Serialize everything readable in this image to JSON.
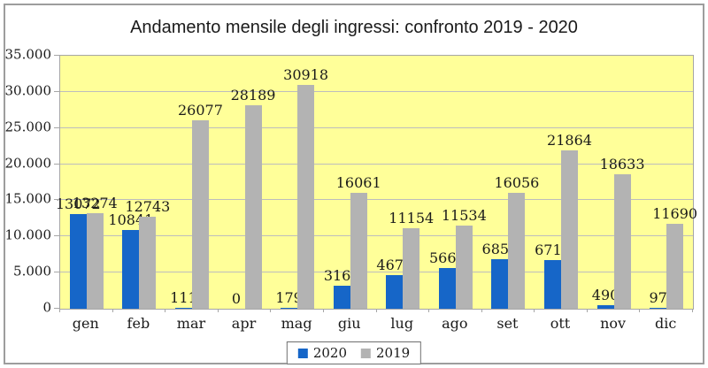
{
  "title": "Andamento mensile degli ingressi: confronto 2019 - 2020",
  "colors": {
    "bar_2020": "#1666C8",
    "bar_2019": "#B3B3B3",
    "plot_background": "#FFFF99",
    "gridline": "#BDBDBD",
    "text": "#1A1A1A"
  },
  "chart_data": {
    "type": "bar",
    "title": "Andamento mensile degli ingressi: confronto 2019 - 2020",
    "categories": [
      "gen",
      "feb",
      "mar",
      "apr",
      "mag",
      "giu",
      "lug",
      "ago",
      "set",
      "ott",
      "nov",
      "dic"
    ],
    "series": [
      {
        "name": "2020",
        "color": "#1666C8",
        "values": [
          13072,
          10841,
          111,
          0,
          179,
          3161,
          4670,
          5667,
          6855,
          6713,
          490,
          97
        ]
      },
      {
        "name": "2019",
        "color": "#B3B3B3",
        "values": [
          13274,
          12743,
          26077,
          28189,
          30918,
          16061,
          11154,
          11534,
          16056,
          21864,
          18633,
          11690
        ]
      }
    ],
    "xlabel": "",
    "ylabel": "",
    "ylim": [
      0,
      35000
    ],
    "y_tick_step": 5000,
    "y_tick_labels": [
      "0",
      "5.000",
      "10.000",
      "15.000",
      "20.000",
      "25.000",
      "30.000",
      "35.000"
    ],
    "grid": true,
    "data_labels": true,
    "legend_position": "bottom",
    "plot_background": "#FFFF99"
  }
}
